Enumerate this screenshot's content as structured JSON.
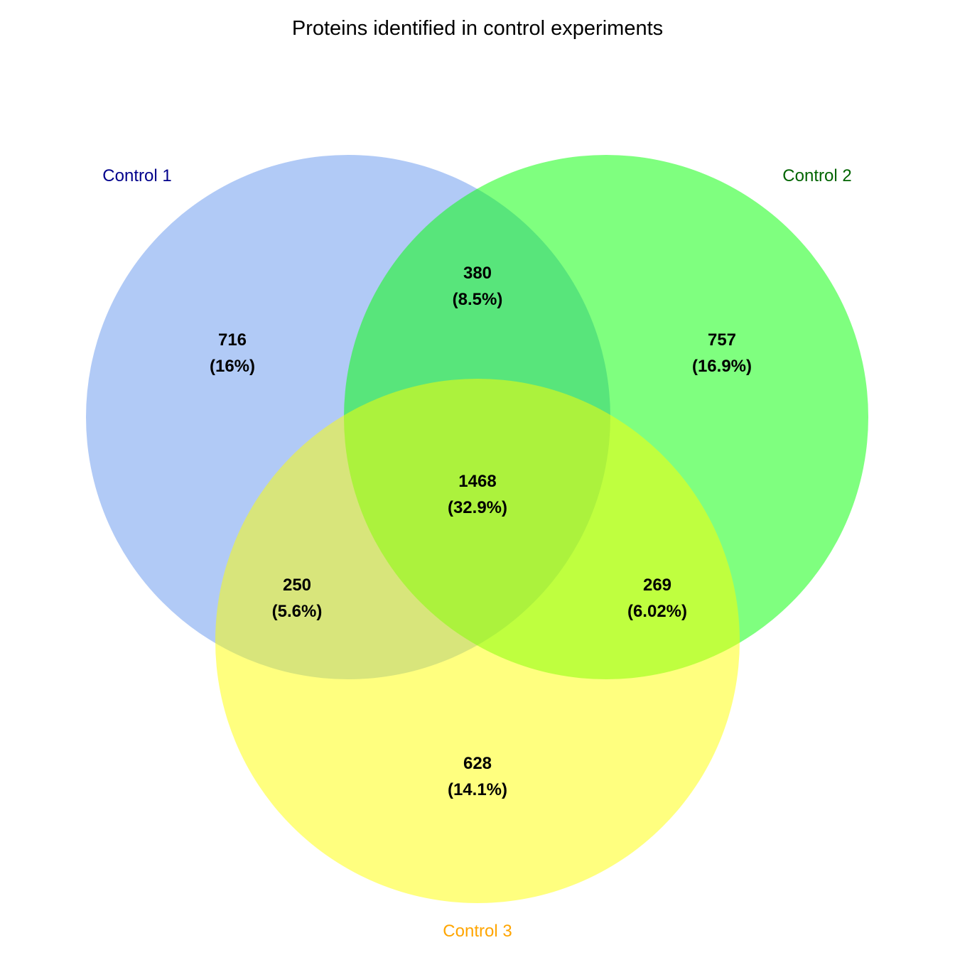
{
  "title": "Proteins identified in control experiments",
  "sets": [
    {
      "name": "Control 1",
      "fill": "#6495ED",
      "label_color": "#00008B"
    },
    {
      "name": "Control 2",
      "fill": "#00FF00",
      "label_color": "#006400"
    },
    {
      "name": "Control 3",
      "fill": "#FFFF00",
      "label_color": "#FFA500"
    }
  ],
  "fill_opacity": 0.5,
  "regions": {
    "c1_only": {
      "count": "716",
      "percent": "(16%)"
    },
    "c2_only": {
      "count": "757",
      "percent": "(16.9%)"
    },
    "c3_only": {
      "count": "628",
      "percent": "(14.1%)"
    },
    "c1_c2": {
      "count": "380",
      "percent": "(8.5%)"
    },
    "c1_c3": {
      "count": "250",
      "percent": "(5.6%)"
    },
    "c2_c3": {
      "count": "269",
      "percent": "(6.02%)"
    },
    "all": {
      "count": "1468",
      "percent": "(32.9%)"
    }
  }
}
